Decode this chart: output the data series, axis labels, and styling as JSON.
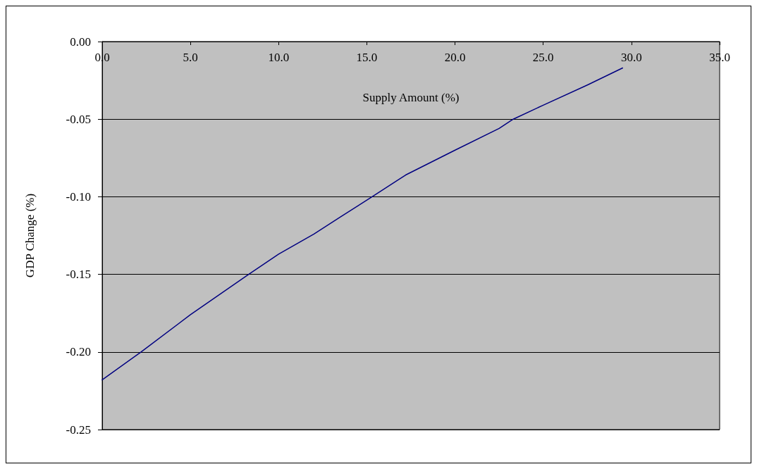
{
  "chart_data": {
    "type": "line",
    "xlabel": "Supply Amount (%)",
    "ylabel": "GDP Change (%)",
    "x": [
      0,
      2.2,
      5,
      8.3,
      10,
      12,
      13.5,
      15.3,
      17.2,
      20,
      22.5,
      23.3,
      25,
      27.5,
      29.5
    ],
    "series": [
      {
        "color": "#000080",
        "values": [
          -0.218,
          -0.2,
          -0.176,
          -0.15,
          -0.137,
          -0.124,
          -0.113,
          -0.1,
          -0.086,
          -0.07,
          -0.056,
          -0.05,
          -0.041,
          -0.028,
          -0.017
        ]
      }
    ],
    "xlim": [
      0,
      35
    ],
    "xticks": [
      {
        "value": 0,
        "label": "0.0"
      },
      {
        "value": 5,
        "label": "5.0"
      },
      {
        "value": 10,
        "label": "10.0"
      },
      {
        "value": 15,
        "label": "15.0"
      },
      {
        "value": 20,
        "label": "20.0"
      },
      {
        "value": 25,
        "label": "25.0"
      },
      {
        "value": 30,
        "label": "30.0"
      },
      {
        "value": 35,
        "label": "35.0"
      }
    ],
    "ylim": [
      -0.25,
      0
    ],
    "yticks": [
      {
        "value": -0.25,
        "label": "-0.25"
      },
      {
        "value": -0.2,
        "label": "-0.20"
      },
      {
        "value": -0.15,
        "label": "-0.15"
      },
      {
        "value": -0.1,
        "label": "-0.10"
      },
      {
        "value": -0.05,
        "label": "-0.05"
      },
      {
        "value": 0,
        "label": "0.00"
      }
    ],
    "grid": "y",
    "marker": "none",
    "line_style": "solid"
  }
}
